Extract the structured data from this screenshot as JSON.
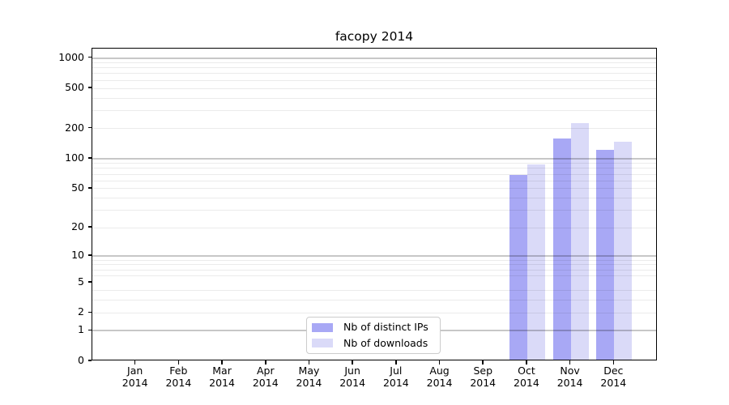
{
  "chart_data": {
    "type": "bar",
    "title": "facopy 2014",
    "x_categories": [
      {
        "month": "Jan",
        "year": "2014"
      },
      {
        "month": "Feb",
        "year": "2014"
      },
      {
        "month": "Mar",
        "year": "2014"
      },
      {
        "month": "Apr",
        "year": "2014"
      },
      {
        "month": "May",
        "year": "2014"
      },
      {
        "month": "Jun",
        "year": "2014"
      },
      {
        "month": "Jul",
        "year": "2014"
      },
      {
        "month": "Aug",
        "year": "2014"
      },
      {
        "month": "Sep",
        "year": "2014"
      },
      {
        "month": "Oct",
        "year": "2014"
      },
      {
        "month": "Nov",
        "year": "2014"
      },
      {
        "month": "Dec",
        "year": "2014"
      }
    ],
    "series": [
      {
        "name": "Nb of distinct IPs",
        "color": "#a8a8f5",
        "values": [
          0,
          0,
          0,
          0,
          0,
          0,
          0,
          0,
          0,
          66,
          154,
          118
        ]
      },
      {
        "name": "Nb of downloads",
        "color": "#dadaf8",
        "values": [
          0,
          0,
          0,
          0,
          0,
          0,
          0,
          0,
          0,
          85,
          220,
          143
        ]
      }
    ],
    "y_axis": {
      "scale": "log10(value+1)",
      "tick_values": [
        0,
        1,
        2,
        5,
        10,
        20,
        50,
        100,
        200,
        500,
        1000
      ],
      "major_gridline_values": [
        1,
        10,
        100,
        1000
      ],
      "minor_gridline_values": [
        2,
        3,
        4,
        6,
        7,
        8,
        9,
        20,
        30,
        40,
        60,
        70,
        80,
        90,
        300,
        400,
        600,
        700,
        800,
        900,
        50,
        200,
        500
      ],
      "min": 0,
      "max_displayed": 1240
    },
    "legend_position": "inside-bottom-center",
    "grid": true,
    "colors": {
      "major_grid": "rgba(0,0,0,0.22)",
      "minor_grid": "rgba(0,0,0,0.08)",
      "axis": "#000000",
      "background": "#ffffff"
    }
  }
}
